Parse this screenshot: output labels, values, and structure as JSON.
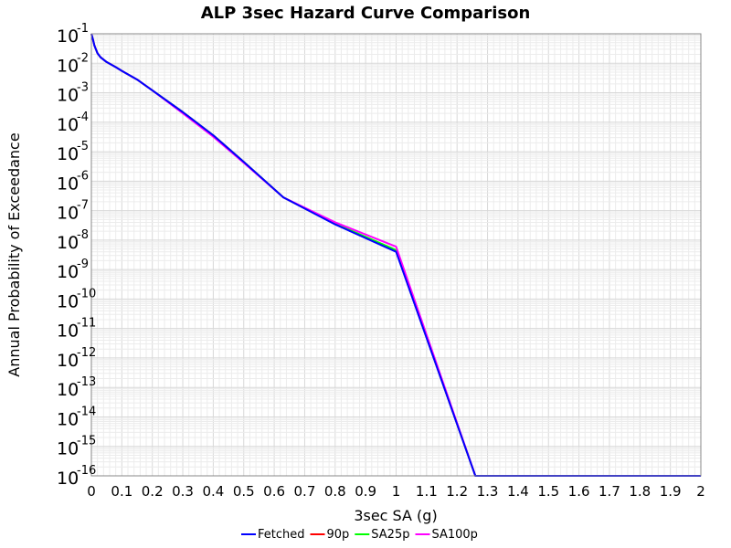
{
  "chart_data": {
    "type": "line",
    "title": "ALP 3sec Hazard Curve Comparison",
    "xlabel": "3sec SA (g)",
    "ylabel": "Annual Probability of Exceedance",
    "xlim": [
      0,
      2
    ],
    "ylim": [
      1e-16,
      0.1
    ],
    "yscale": "log",
    "grid": true,
    "legend_position": "bottom",
    "x_ticks": [
      "0",
      "0.1",
      "0.2",
      "0.3",
      "0.4",
      "0.5",
      "0.6",
      "0.7",
      "0.8",
      "0.9",
      "1",
      "1.1",
      "1.2",
      "1.3",
      "1.4",
      "1.5",
      "1.6",
      "1.7",
      "1.8",
      "1.9",
      "2"
    ],
    "y_tick_base": "10",
    "y_tick_exponents": [
      "-1",
      "-2",
      "-3",
      "-4",
      "-5",
      "-6",
      "-7",
      "-8",
      "-9",
      "-10",
      "-11",
      "-12",
      "-13",
      "-14",
      "-15",
      "-16"
    ],
    "series": [
      {
        "name": "90p",
        "color": "#ff0000",
        "x": [
          0.0,
          0.005,
          0.01,
          0.02,
          0.03,
          0.05,
          0.08,
          0.1,
          0.15,
          0.2,
          0.3,
          0.4,
          0.5,
          0.63,
          0.8,
          1.0,
          1.26,
          2.0
        ],
        "y": [
          0.1,
          0.065,
          0.04,
          0.022,
          0.016,
          0.011,
          0.0074,
          0.0055,
          0.0028,
          0.0012,
          0.00022,
          3.6e-05,
          4.5e-06,
          2.8e-07,
          3.5e-08,
          4.2e-09,
          1e-16,
          1e-16
        ]
      },
      {
        "name": "SA25p",
        "color": "#00ff00",
        "x": [
          0.0,
          0.005,
          0.01,
          0.02,
          0.03,
          0.05,
          0.08,
          0.1,
          0.15,
          0.2,
          0.3,
          0.4,
          0.5,
          0.63,
          0.8,
          1.0,
          1.26,
          2.0
        ],
        "y": [
          0.1,
          0.065,
          0.04,
          0.022,
          0.016,
          0.011,
          0.0074,
          0.0055,
          0.0028,
          0.0012,
          0.00022,
          3.6e-05,
          4.5e-06,
          2.8e-07,
          3.6e-08,
          4.6e-09,
          1e-16,
          1e-16
        ]
      },
      {
        "name": "SA100p",
        "color": "#ff00ff",
        "x": [
          0.0,
          0.005,
          0.01,
          0.02,
          0.03,
          0.05,
          0.08,
          0.1,
          0.15,
          0.2,
          0.3,
          0.4,
          0.5,
          0.63,
          0.8,
          1.0,
          1.26,
          2.0
        ],
        "y": [
          0.1,
          0.065,
          0.04,
          0.022,
          0.016,
          0.011,
          0.0074,
          0.0055,
          0.0028,
          0.0012,
          0.0002,
          3.2e-05,
          4.2e-06,
          2.8e-07,
          4e-08,
          6e-09,
          1e-16,
          1e-16
        ]
      },
      {
        "name": "Fetched",
        "color": "#0000ff",
        "x": [
          0.0,
          0.005,
          0.01,
          0.02,
          0.03,
          0.05,
          0.08,
          0.1,
          0.15,
          0.2,
          0.3,
          0.4,
          0.5,
          0.63,
          0.8,
          1.0,
          1.26,
          2.0
        ],
        "y": [
          0.1,
          0.065,
          0.04,
          0.022,
          0.016,
          0.011,
          0.0074,
          0.0055,
          0.0028,
          0.0012,
          0.00022,
          3.6e-05,
          4.5e-06,
          2.8e-07,
          3.4e-08,
          4e-09,
          1e-16,
          1e-16
        ]
      }
    ],
    "legend_order": [
      "Fetched",
      "90p",
      "SA25p",
      "SA100p"
    ]
  },
  "colors": {
    "plot_background": "#ffffff",
    "grid_major": "#d8d8d8",
    "grid_minor": "#ececec",
    "frame": "#888888"
  }
}
